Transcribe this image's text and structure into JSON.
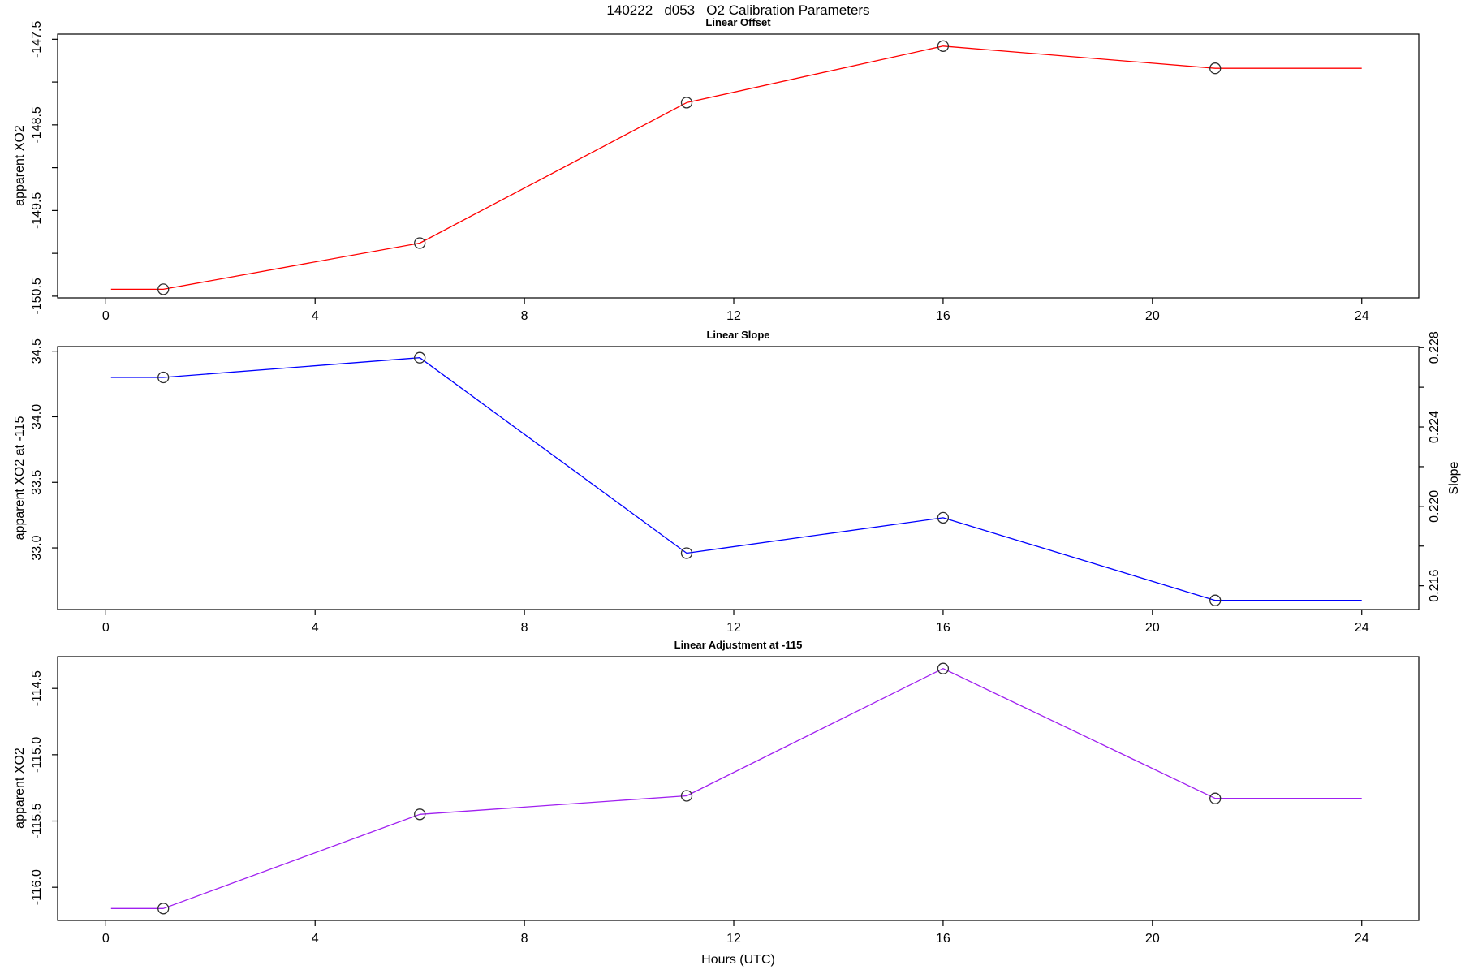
{
  "figure": {
    "title": "140222   d053   O2 Calibration Parameters",
    "xlabel": "Hours (UTC)",
    "background": "#ffffff",
    "axis_color": "#000000",
    "marker_color": "#2e2e2e"
  },
  "chart_data": [
    {
      "type": "line",
      "title": "Linear Offset",
      "ylabel": "apparent XO2",
      "line_color": "#ff0000",
      "x": [
        1.1,
        6.0,
        11.1,
        16.0,
        21.2
      ],
      "y": [
        -150.42,
        -149.88,
        -148.24,
        -147.58,
        -147.84
      ],
      "extend_x": [
        0.1,
        24.0
      ],
      "xlim": [
        -0.92,
        25.09
      ],
      "ylim": [
        -150.52,
        -147.44
      ],
      "xticks": {
        "values": [
          0,
          4,
          8,
          12,
          16,
          20,
          24
        ],
        "labels": [
          "0",
          "4",
          "8",
          "12",
          "16",
          "20",
          "24"
        ]
      },
      "yticks": {
        "values": [
          -147.5,
          -148.0,
          -148.5,
          -149.0,
          -149.5,
          -150.0,
          -150.5
        ],
        "labels": [
          "-147.5",
          "",
          "-148.5",
          "",
          "-149.5",
          "",
          "-150.5"
        ]
      },
      "grid": false,
      "legend": null
    },
    {
      "type": "line",
      "title": "Linear Slope",
      "ylabel": "apparent XO2 at -115",
      "line_color": "#0000ff",
      "x": [
        1.1,
        6.0,
        11.1,
        16.0,
        21.2
      ],
      "y": [
        34.3,
        34.45,
        32.96,
        33.23,
        32.6
      ],
      "extend_x": [
        0.1,
        24.0
      ],
      "xlim": [
        -0.92,
        25.09
      ],
      "ylim": [
        32.53,
        34.535
      ],
      "xticks": {
        "values": [
          0,
          4,
          8,
          12,
          16,
          20,
          24
        ],
        "labels": [
          "0",
          "4",
          "8",
          "12",
          "16",
          "20",
          "24"
        ]
      },
      "yticks": {
        "values": [
          34.5,
          34.0,
          33.5,
          33.0
        ],
        "labels": [
          "34.5",
          "34.0",
          "33.5",
          "33.0"
        ]
      },
      "right_axis": {
        "label": "Slope",
        "ylim": [
          0.2148,
          0.22805
        ],
        "ticks": {
          "values": [
            0.228,
            0.226,
            0.224,
            0.222,
            0.22,
            0.218,
            0.216
          ],
          "labels": [
            "0.228",
            "",
            "0.224",
            "",
            "0.220",
            "",
            "0.216"
          ]
        },
        "series_slope_values": [
          0.2265,
          0.2276,
          0.2176,
          0.2194,
          0.2153
        ]
      },
      "grid": false,
      "legend": null
    },
    {
      "type": "line",
      "title": "Linear Adjustment at -115",
      "ylabel": "apparent XO2",
      "line_color": "#a020f0",
      "x": [
        1.1,
        6.0,
        11.1,
        16.0,
        21.2
      ],
      "y": [
        -116.16,
        -115.45,
        -115.31,
        -114.35,
        -115.33
      ],
      "extend_x": [
        0.1,
        24.0
      ],
      "xlim": [
        -0.92,
        25.09
      ],
      "ylim": [
        -116.25,
        -114.26
      ],
      "xticks": {
        "values": [
          0,
          4,
          8,
          12,
          16,
          20,
          24
        ],
        "labels": [
          "0",
          "4",
          "8",
          "12",
          "16",
          "20",
          "24"
        ]
      },
      "yticks": {
        "values": [
          -114.5,
          -115.0,
          -115.5,
          -116.0
        ],
        "labels": [
          "-114.5",
          "-115.0",
          "-115.5",
          "-116.0"
        ]
      },
      "grid": false,
      "legend": null
    }
  ]
}
